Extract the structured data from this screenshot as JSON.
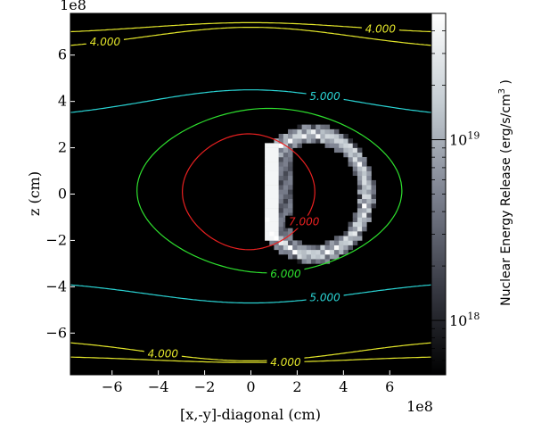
{
  "chart_data": {
    "type": "heatmap",
    "xlabel": "[x,-y]-diagonal (cm)",
    "ylabel": "z (cm)",
    "x_scale_label": "1e8",
    "y_scale_label": "1e8",
    "xlim": [
      -7.8,
      7.8
    ],
    "ylim": [
      -7.8,
      7.8
    ],
    "x_ticks": [
      {
        "value": -6,
        "label": "−6"
      },
      {
        "value": -4,
        "label": "−4"
      },
      {
        "value": -2,
        "label": "−2"
      },
      {
        "value": 0,
        "label": "0"
      },
      {
        "value": 2,
        "label": "2"
      },
      {
        "value": 4,
        "label": "4"
      },
      {
        "value": 6,
        "label": "6"
      }
    ],
    "y_ticks": [
      {
        "value": 6,
        "label": "6"
      },
      {
        "value": 4,
        "label": "4"
      },
      {
        "value": 2,
        "label": "2"
      },
      {
        "value": 0,
        "label": "0"
      },
      {
        "value": -2,
        "label": "−2"
      },
      {
        "value": -4,
        "label": "−4"
      },
      {
        "value": -6,
        "label": "−6"
      }
    ],
    "background_color": "#000000",
    "colorbar": {
      "label": "Nuclear Energy Release (erg/s/cm",
      "label_sup": "3",
      "label_end": " )",
      "scale": "log",
      "range": [
        5e+17,
        5e+19
      ],
      "ticks": [
        {
          "value": 1e+18,
          "base": "10",
          "exp": "18"
        },
        {
          "value": 1e+19,
          "base": "10",
          "exp": "19"
        }
      ],
      "colormap": [
        "#000000",
        "#3a3c46",
        "#7d8290",
        "#c4ccd2",
        "#ffffff"
      ]
    },
    "contours": [
      {
        "level": "4.000",
        "color": "#e3e62a",
        "kind": "line",
        "y": 6.8,
        "amp": 1.0,
        "label_x": -6.3
      },
      {
        "level": "4.000",
        "color": "#e3e62a",
        "kind": "line",
        "y": -6.8,
        "amp": -1.0,
        "label_x": -3.8
      },
      {
        "level": "4.000",
        "color": "#e3e62a",
        "kind": "line",
        "y": -7.15,
        "amp": -0.3,
        "label_x": 1.5
      },
      {
        "level": "4.000",
        "color": "#e3e62a",
        "kind": "line",
        "y": 7.2,
        "amp": 0.5,
        "label_x": 5.6
      },
      {
        "level": "5.000",
        "color": "#2ad4d4",
        "kind": "line",
        "y": 4.0,
        "amp": 1.25,
        "label_x": 3.2
      },
      {
        "level": "5.000",
        "color": "#2ad4d4",
        "kind": "line",
        "y": -4.3,
        "amp": -1.0,
        "label_x": 3.2
      },
      {
        "level": "6.000",
        "color": "#2ee02e",
        "kind": "ellipse",
        "cx": 0.8,
        "cy": 0.15,
        "rx": 5.4,
        "ry": 3.55,
        "label_x": 1.5,
        "label_y": -3.45
      },
      {
        "level": "7.000",
        "color": "#e82020",
        "kind": "ellipse",
        "cx": -0.1,
        "cy": 0.1,
        "rx": 2.7,
        "ry": 2.5,
        "label_x": 2.3,
        "label_y": -1.2
      }
    ],
    "energy_region": {
      "description_none": "",
      "center": [
        2.7,
        0.0
      ],
      "radius_x": 2.3,
      "radius_y": 2.6,
      "ring_width": 0.35,
      "flat_left_x": 0.9,
      "peak_value": 5e+19,
      "min_value": 5e+17
    }
  }
}
